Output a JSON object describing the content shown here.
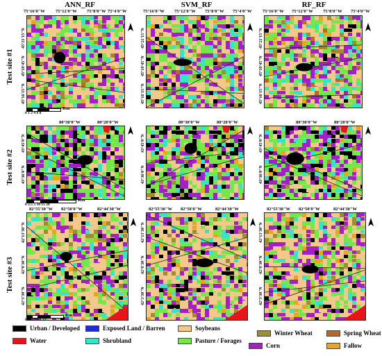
{
  "columns": [
    "ANN_RF",
    "SVM_RF",
    "RF_RF"
  ],
  "rows": [
    "Test site #1",
    "Test site #2",
    "Test site #3"
  ],
  "site1": {
    "top_coords": [
      "75°16'0\"W",
      "75°12'0\"W",
      "75°8'0\"W",
      "75°4'0\"W"
    ],
    "left_coords": [
      "45°21'15\"N",
      "45°18'45\"N",
      "45°16'15\"N"
    ],
    "scale_ticks": "0 1 2   4   6   8",
    "scale_unit": "Km"
  },
  "site2": {
    "top_coords": [
      "80°30'0\"W",
      "80°20'0\"W"
    ],
    "left_coords": [
      "43°45'0\"N",
      "43°36'0\"N"
    ],
    "scale_ticks": "0  2.5  5     10     15    20",
    "scale_unit": "Km"
  },
  "site3": {
    "top_coords": [
      "82°55'30\"W",
      "82°50'0\"W",
      "82°44'30\"W"
    ],
    "left_coords": [
      "42°13'30\"N",
      "42°8'30\"N",
      "42°3'30\"N"
    ],
    "scale_ticks": "0 1.5 3    6      9     12",
    "scale_unit": "Km"
  },
  "north_label": "N",
  "legend": [
    {
      "label": "Urban / Developed",
      "color": "#000000"
    },
    {
      "label": "Water",
      "color": "#e8141a"
    },
    {
      "label": "Exposed Land / Barren",
      "color": "#1f2bd6"
    },
    {
      "label": "Shrubland",
      "color": "#35e6c6"
    },
    {
      "label": "Soybeans",
      "color": "#f2c98a"
    },
    {
      "label": "Pasture / Forages",
      "color": "#74e84a"
    },
    {
      "label": "Corn",
      "color": "#a51fc9"
    },
    {
      "label": "Winter Wheat",
      "color": "#a08d2e"
    },
    {
      "label": "Spring Wheat",
      "color": "#b56a2a"
    },
    {
      "label": "Fallow",
      "color": "#e9a61a"
    }
  ]
}
